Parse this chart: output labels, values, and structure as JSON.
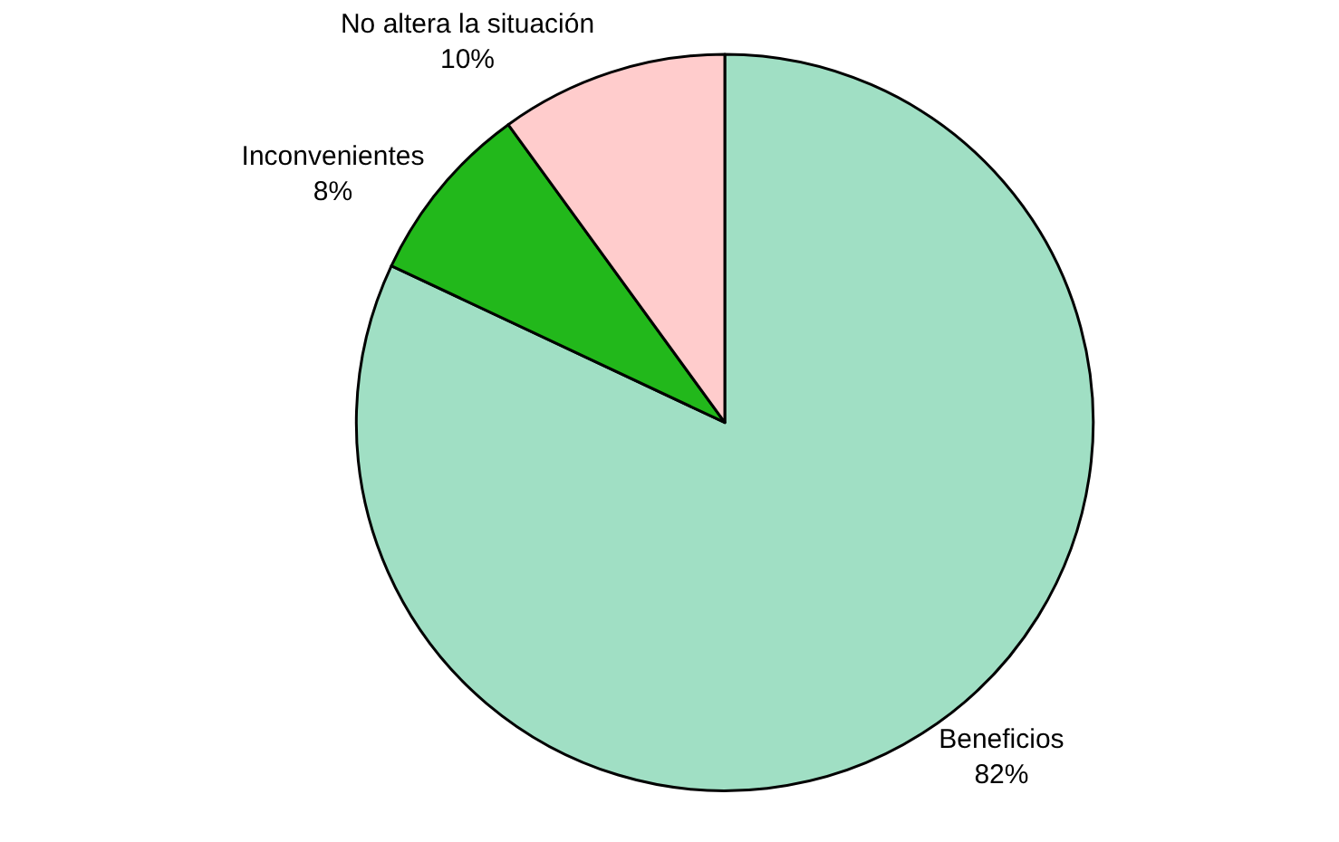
{
  "chart_data": {
    "type": "pie",
    "categories": [
      "Beneficios",
      "Inconvenientes",
      "No altera la situación"
    ],
    "values": [
      82,
      8,
      10
    ],
    "colors": [
      "#a0dfc4",
      "#22b81b",
      "#ffcccc"
    ],
    "value_labels": [
      "82%",
      "8%",
      "10%"
    ],
    "legend": false
  }
}
